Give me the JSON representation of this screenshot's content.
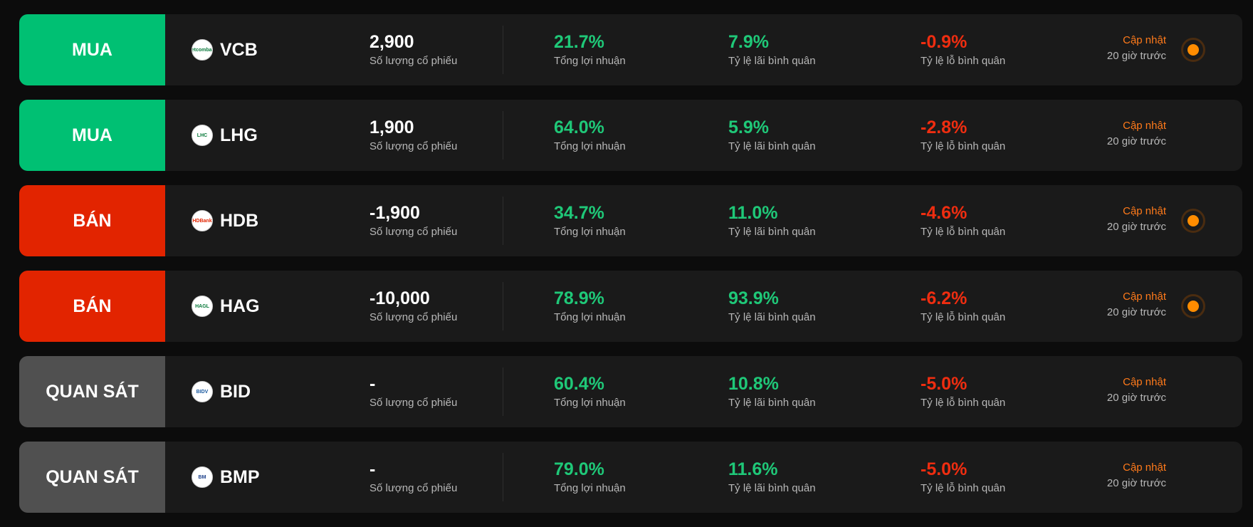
{
  "labels": {
    "qty": "Số lượng cổ phiếu",
    "profit": "Tổng lợi nhuận",
    "gain": "Tỷ lệ lãi bình quân",
    "loss": "Tỷ lệ lỗ bình quân",
    "updated": "Cập nhật",
    "ago": "20 giờ trước"
  },
  "colors": {
    "buy": "#00c073",
    "sell": "#e22400",
    "watch": "#505050",
    "positive": "#1fc878",
    "negative": "#ef2d10",
    "accent": "#ff7a1a"
  },
  "rows": [
    {
      "signal": "MUA",
      "type": "buy",
      "ticker": "VCB",
      "logo": "Vietcombank",
      "qty": "2,900",
      "profit": "21.7%",
      "gain": "7.9%",
      "loss": "-0.9%",
      "indicator": true
    },
    {
      "signal": "MUA",
      "type": "buy",
      "ticker": "LHG",
      "logo": "LHC",
      "qty": "1,900",
      "profit": "64.0%",
      "gain": "5.9%",
      "loss": "-2.8%",
      "indicator": false
    },
    {
      "signal": "BÁN",
      "type": "sell",
      "ticker": "HDB",
      "logo": "HDBank",
      "qty": "-1,900",
      "profit": "34.7%",
      "gain": "11.0%",
      "loss": "-4.6%",
      "indicator": true
    },
    {
      "signal": "BÁN",
      "type": "sell",
      "ticker": "HAG",
      "logo": "HAGL",
      "qty": "-10,000",
      "profit": "78.9%",
      "gain": "93.9%",
      "loss": "-6.2%",
      "indicator": true
    },
    {
      "signal": "QUAN SÁT",
      "type": "watch",
      "ticker": "BID",
      "logo": "BIDV",
      "qty": "-",
      "profit": "60.4%",
      "gain": "10.8%",
      "loss": "-5.0%",
      "indicator": false
    },
    {
      "signal": "QUAN SÁT",
      "type": "watch",
      "ticker": "BMP",
      "logo": "BM",
      "qty": "-",
      "profit": "79.0%",
      "gain": "11.6%",
      "loss": "-5.0%",
      "indicator": false
    }
  ]
}
